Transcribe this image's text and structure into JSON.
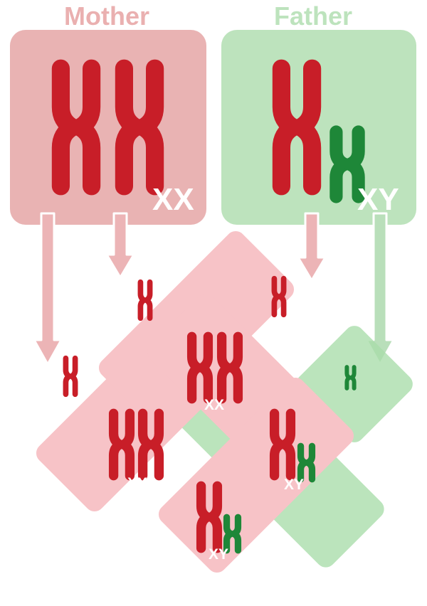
{
  "parents": {
    "mother": {
      "label": "Mother",
      "genotype": "XX"
    },
    "father": {
      "label": "Father",
      "genotype": "XY"
    }
  },
  "offspring": [
    {
      "id": "xx-left",
      "genotype": "XX"
    },
    {
      "id": "xx-center",
      "genotype": "XX"
    },
    {
      "id": "xy-right",
      "genotype": "XY"
    },
    {
      "id": "xy-bottom",
      "genotype": "XY"
    }
  ],
  "colors": {
    "x_chromosome": "#c81e28",
    "y_chromosome": "#1e8738",
    "mother_box": "#e9b3b3",
    "father_box": "#bde3bd",
    "mother_label": "#eab0b0",
    "father_label": "#bde3bd",
    "x_gamete_cell": "#f5b3b8",
    "y_gamete_cell": "#a9ddaa",
    "genotype_text": "#ffffff"
  }
}
